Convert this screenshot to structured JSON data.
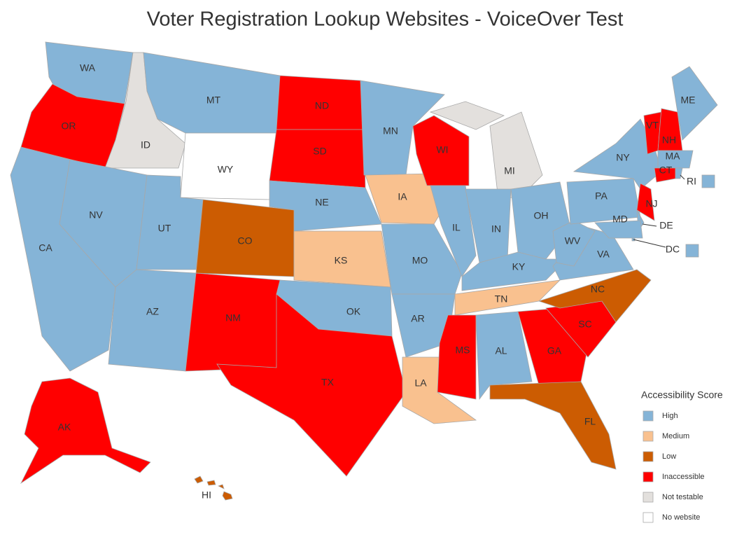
{
  "title": "Voter Registration Lookup Websites - VoiceOver Test",
  "legend": {
    "title": "Accessibility Score",
    "items": [
      {
        "label": "High",
        "color": "#85b4d7"
      },
      {
        "label": "Medium",
        "color": "#f9c18f"
      },
      {
        "label": "Low",
        "color": "#cc5c02"
      },
      {
        "label": "Inaccessible",
        "color": "#ff0000"
      },
      {
        "label": "Not testable",
        "color": "#e3e0dd"
      },
      {
        "label": "No website",
        "color": "#ffffff"
      }
    ]
  },
  "states": [
    {
      "code": "WA",
      "score": "High"
    },
    {
      "code": "OR",
      "score": "Inaccessible"
    },
    {
      "code": "ID",
      "score": "Not testable"
    },
    {
      "code": "MT",
      "score": "High"
    },
    {
      "code": "WY",
      "score": "No website"
    },
    {
      "code": "ND",
      "score": "Inaccessible"
    },
    {
      "code": "SD",
      "score": "Inaccessible"
    },
    {
      "code": "NE",
      "score": "High"
    },
    {
      "code": "CA",
      "score": "High"
    },
    {
      "code": "NV",
      "score": "High"
    },
    {
      "code": "UT",
      "score": "High"
    },
    {
      "code": "AZ",
      "score": "High"
    },
    {
      "code": "CO",
      "score": "Low"
    },
    {
      "code": "NM",
      "score": "Inaccessible"
    },
    {
      "code": "KS",
      "score": "Medium"
    },
    {
      "code": "OK",
      "score": "High"
    },
    {
      "code": "TX",
      "score": "Inaccessible"
    },
    {
      "code": "MN",
      "score": "High"
    },
    {
      "code": "IA",
      "score": "Medium"
    },
    {
      "code": "MO",
      "score": "High"
    },
    {
      "code": "AR",
      "score": "High"
    },
    {
      "code": "LA",
      "score": "Medium"
    },
    {
      "code": "WI",
      "score": "Inaccessible"
    },
    {
      "code": "IL",
      "score": "High"
    },
    {
      "code": "MI",
      "score": "Not testable"
    },
    {
      "code": "IN",
      "score": "High"
    },
    {
      "code": "OH",
      "score": "High"
    },
    {
      "code": "KY",
      "score": "High"
    },
    {
      "code": "TN",
      "score": "Medium"
    },
    {
      "code": "MS",
      "score": "Inaccessible"
    },
    {
      "code": "AL",
      "score": "High"
    },
    {
      "code": "GA",
      "score": "Inaccessible"
    },
    {
      "code": "FL",
      "score": "Low"
    },
    {
      "code": "SC",
      "score": "Inaccessible"
    },
    {
      "code": "NC",
      "score": "Low"
    },
    {
      "code": "VA",
      "score": "High"
    },
    {
      "code": "WV",
      "score": "High"
    },
    {
      "code": "PA",
      "score": "High"
    },
    {
      "code": "NY",
      "score": "High"
    },
    {
      "code": "NJ",
      "score": "Inaccessible"
    },
    {
      "code": "DE",
      "score": "High"
    },
    {
      "code": "MD",
      "score": "High"
    },
    {
      "code": "VT",
      "score": "Inaccessible"
    },
    {
      "code": "NH",
      "score": "Inaccessible"
    },
    {
      "code": "ME",
      "score": "High"
    },
    {
      "code": "MA",
      "score": "High"
    },
    {
      "code": "CT",
      "score": "Inaccessible"
    },
    {
      "code": "RI",
      "score": "High"
    },
    {
      "code": "DC",
      "score": "High"
    },
    {
      "code": "AK",
      "score": "Inaccessible"
    },
    {
      "code": "HI",
      "score": "Low"
    }
  ]
}
